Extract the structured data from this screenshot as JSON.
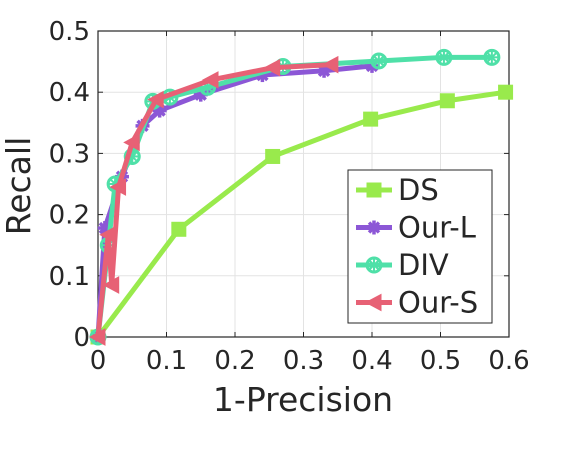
{
  "chart_data": {
    "type": "line",
    "title": "",
    "xlabel": "1-Precision",
    "ylabel": "Recall",
    "xlim": [
      0,
      0.6
    ],
    "ylim": [
      0,
      0.5
    ],
    "xticks": [
      0,
      0.1,
      0.2,
      0.3,
      0.4,
      0.5,
      0.6
    ],
    "xtick_labels": [
      "0",
      "0.1",
      "0.2",
      "0.3",
      "0.4",
      "0.5",
      "0.6"
    ],
    "yticks": [
      0,
      0.1,
      0.2,
      0.3,
      0.4,
      0.5
    ],
    "ytick_labels": [
      "0",
      "0.1",
      "0.2",
      "0.3",
      "0.4",
      "0.5"
    ],
    "grid": true,
    "legend_position": "lower-right",
    "series": [
      {
        "name": "DS",
        "color": "#99ea4c",
        "marker": "square",
        "x": [
          0,
          0.118,
          0.255,
          0.398,
          0.51,
          0.595
        ],
        "y": [
          0,
          0.176,
          0.295,
          0.356,
          0.386,
          0.4
        ]
      },
      {
        "name": "Our-L",
        "color": "#8c57d6",
        "marker": "star",
        "x": [
          0,
          0.01,
          0.035,
          0.065,
          0.09,
          0.15,
          0.24,
          0.33,
          0.4
        ],
        "y": [
          0,
          0.178,
          0.262,
          0.345,
          0.37,
          0.396,
          0.428,
          0.435,
          0.443
        ]
      },
      {
        "name": "DIV",
        "color": "#4fe0a8",
        "marker": "circle",
        "x": [
          0,
          0.015,
          0.025,
          0.05,
          0.08,
          0.105,
          0.16,
          0.27,
          0.41,
          0.505,
          0.575
        ],
        "y": [
          0,
          0.15,
          0.25,
          0.295,
          0.385,
          0.392,
          0.408,
          0.442,
          0.451,
          0.457,
          0.457
        ]
      },
      {
        "name": "Our-S",
        "color": "#e76175",
        "marker": "triangle-left",
        "x": [
          0,
          0.015,
          0.02,
          0.03,
          0.05,
          0.085,
          0.165,
          0.255,
          0.34
        ],
        "y": [
          0,
          0.167,
          0.085,
          0.245,
          0.318,
          0.388,
          0.42,
          0.44,
          0.445
        ]
      }
    ]
  }
}
